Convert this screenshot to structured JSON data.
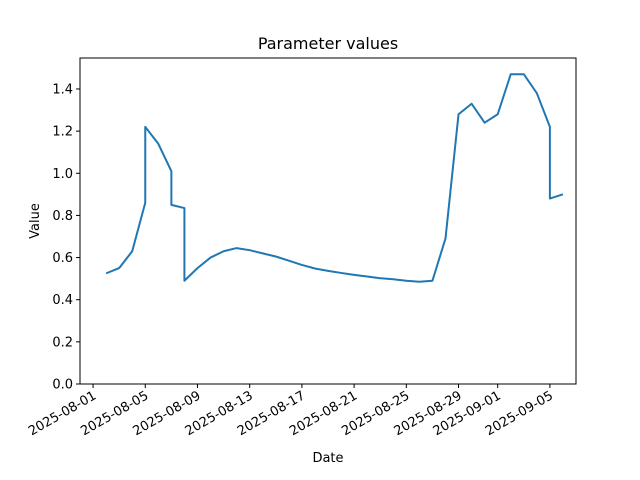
{
  "chart_data": {
    "type": "line",
    "title": "Parameter values",
    "x_label": "Date",
    "y_label": "Value",
    "x": [
      "2025-08-02",
      "2025-08-03",
      "2025-08-04",
      "2025-08-05",
      "2025-08-05",
      "2025-08-06",
      "2025-08-07",
      "2025-08-07",
      "2025-08-08",
      "2025-08-08",
      "2025-08-09",
      "2025-08-10",
      "2025-08-11",
      "2025-08-12",
      "2025-08-13",
      "2025-08-14",
      "2025-08-15",
      "2025-08-16",
      "2025-08-17",
      "2025-08-18",
      "2025-08-19",
      "2025-08-20",
      "2025-08-21",
      "2025-08-22",
      "2025-08-23",
      "2025-08-24",
      "2025-08-25",
      "2025-08-26",
      "2025-08-27",
      "2025-08-28",
      "2025-08-29",
      "2025-08-30",
      "2025-08-31",
      "2025-09-01",
      "2025-09-02",
      "2025-09-03",
      "2025-09-04",
      "2025-09-05",
      "2025-09-05",
      "2025-09-06"
    ],
    "series": [
      {
        "name": "Value",
        "color": "#1f77b4",
        "values": [
          0.525,
          0.55,
          0.63,
          0.86,
          1.22,
          1.14,
          1.01,
          0.85,
          0.835,
          0.49,
          0.55,
          0.6,
          0.63,
          0.645,
          0.635,
          0.62,
          0.605,
          0.585,
          0.565,
          0.548,
          0.537,
          0.527,
          0.518,
          0.51,
          0.502,
          0.497,
          0.49,
          0.485,
          0.49,
          0.69,
          1.28,
          1.33,
          1.24,
          1.28,
          1.47,
          1.47,
          1.38,
          1.22,
          0.88,
          0.9
        ]
      }
    ],
    "xlim": [
      "2025-07-31",
      "2025-09-07"
    ],
    "xticks": [
      "2025-08-01",
      "2025-08-05",
      "2025-08-09",
      "2025-08-13",
      "2025-08-17",
      "2025-08-21",
      "2025-08-25",
      "2025-08-29",
      "2025-09-01",
      "2025-09-05"
    ],
    "ylim": [
      0,
      1.547
    ],
    "yticks": [
      {
        "value": 0,
        "label": "0.0"
      },
      0.2,
      0.4,
      0.6,
      0.8,
      {
        "value": 1,
        "label": "1.0"
      },
      1.2,
      1.4
    ]
  }
}
